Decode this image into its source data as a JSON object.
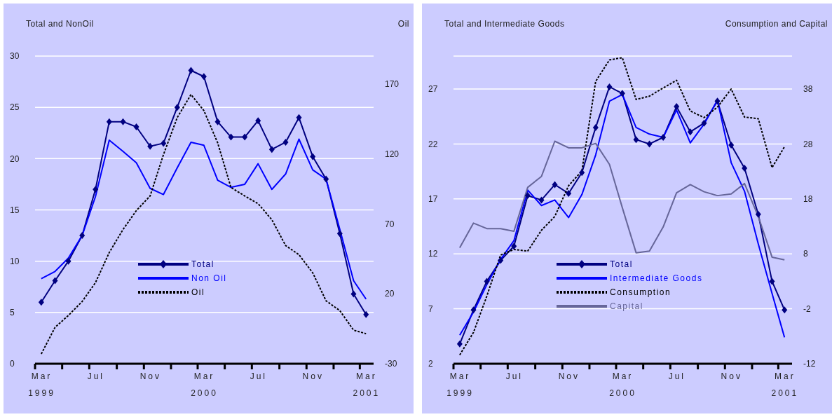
{
  "chart_data": [
    {
      "type": "line",
      "ylabel": "Total and NonOil",
      "y2label": "Oil",
      "x": [
        "1999-03-15",
        "1999-04-15",
        "1999-05-15",
        "1999-06-15",
        "1999-07-15",
        "1999-08-15",
        "1999-09-15",
        "1999-10-15",
        "1999-11-15",
        "1999-12-15",
        "2000-01-15",
        "2000-02-15",
        "2000-03-15",
        "2000-04-15",
        "2000-05-15",
        "2000-06-15",
        "2000-07-15",
        "2000-08-15",
        "2000-09-15",
        "2000-10-15",
        "2000-11-15",
        "2000-12-15",
        "2001-01-15",
        "2001-02-15",
        "2001-03-15"
      ],
      "series": [
        {
          "name": "Total",
          "color": "#000080",
          "marker": "diamond",
          "line_style": "solid",
          "values": [
            6.0,
            8.1,
            10.0,
            12.5,
            17.0,
            23.6,
            23.6,
            23.1,
            21.2,
            21.5,
            25.0,
            28.6,
            28.0,
            23.6,
            22.1,
            22.1,
            23.7,
            20.9,
            21.6,
            24.0,
            20.2,
            18.0,
            12.7,
            6.8,
            4.8
          ]
        },
        {
          "name": "Non Oil",
          "color": "#0000ff",
          "marker": "none",
          "line_style": "solid",
          "values": [
            8.3,
            9.0,
            10.3,
            12.5,
            16.3,
            21.8,
            20.7,
            19.6,
            17.1,
            16.5,
            19.1,
            21.6,
            21.3,
            17.9,
            17.2,
            17.5,
            19.5,
            17.0,
            18.5,
            21.9,
            18.9,
            18.0,
            13.1,
            8.1,
            6.3
          ]
        },
        {
          "name": "Oil",
          "color": "#000000",
          "marker": "none",
          "line_style": "dashed",
          "axis": "y2",
          "values": [
            -23,
            -4,
            4.5,
            14.5,
            28,
            49.5,
            66,
            79.5,
            90,
            119.5,
            146,
            162.5,
            151,
            128,
            96,
            90,
            84.5,
            73,
            54.5,
            48,
            35,
            15,
            8,
            -6,
            -8.5
          ]
        }
      ],
      "xlim": [
        "1999-03-01",
        "2001-04-01"
      ],
      "xticks": [
        {
          "value": "1999-03-01",
          "label": null
        },
        {
          "value": "1999-03-16",
          "label": "Mar\n1999"
        },
        {
          "value": "1999-05-01",
          "label": null
        },
        {
          "value": "1999-07-01",
          "label": null
        },
        {
          "value": "1999-07-16",
          "label": "Jul"
        },
        {
          "value": "1999-09-01",
          "label": null
        },
        {
          "value": "1999-11-01",
          "label": null
        },
        {
          "value": "1999-11-16",
          "label": "Nov"
        },
        {
          "value": "2000-01-01",
          "label": null
        },
        {
          "value": "2000-03-01",
          "label": null
        },
        {
          "value": "2000-03-16",
          "label": "Mar\n2000"
        },
        {
          "value": "2000-05-01",
          "label": null
        },
        {
          "value": "2000-07-01",
          "label": null
        },
        {
          "value": "2000-07-16",
          "label": "Jul"
        },
        {
          "value": "2000-09-01",
          "label": null
        },
        {
          "value": "2000-11-01",
          "label": null
        },
        {
          "value": "2000-11-16",
          "label": "Nov"
        },
        {
          "value": "2001-01-01",
          "label": null
        },
        {
          "value": "2001-03-01",
          "label": null
        },
        {
          "value": "2001-03-16",
          "label": "Mar\n2001"
        }
      ],
      "ylim": [
        0,
        30
      ],
      "yticks": [
        0,
        5,
        10,
        15,
        20,
        25,
        30
      ],
      "y2lim": [
        -30,
        190
      ],
      "y2ticks": [
        -30,
        20,
        70,
        120,
        170
      ],
      "grid": "y",
      "legend": "bottom"
    },
    {
      "type": "line",
      "ylabel": "Total and Intermediate Goods",
      "y2label": "Consumption and Capital",
      "x": [
        "1999-03-15",
        "1999-04-15",
        "1999-05-15",
        "1999-06-15",
        "1999-07-15",
        "1999-08-15",
        "1999-09-15",
        "1999-10-15",
        "1999-11-15",
        "1999-12-15",
        "2000-01-15",
        "2000-02-15",
        "2000-03-15",
        "2000-04-15",
        "2000-05-15",
        "2000-06-15",
        "2000-07-15",
        "2000-08-15",
        "2000-09-15",
        "2000-10-15",
        "2000-11-15",
        "2000-12-15",
        "2001-01-15",
        "2001-02-15",
        "2001-03-15"
      ],
      "series": [
        {
          "name": "Total",
          "color": "#000080",
          "marker": "diamond",
          "line_style": "solid",
          "values": [
            3.8,
            6.9,
            9.5,
            11.4,
            12.7,
            17.3,
            16.9,
            18.3,
            17.5,
            19.4,
            23.5,
            27.2,
            26.6,
            22.4,
            22.0,
            22.6,
            25.4,
            23.1,
            23.9,
            25.9,
            21.9,
            19.8,
            15.6,
            9.5,
            6.9
          ]
        },
        {
          "name": "Intermediate Goods",
          "color": "#0000ff",
          "marker": "none",
          "line_style": "solid",
          "values": [
            4.6,
            6.7,
            9.2,
            11.5,
            13.2,
            17.8,
            16.4,
            16.9,
            15.3,
            17.4,
            21.0,
            25.9,
            26.5,
            23.5,
            22.9,
            22.6,
            25.1,
            22.1,
            23.8,
            26.0,
            20.3,
            17.7,
            12.9,
            8.4,
            4.4
          ]
        },
        {
          "name": "Consumption",
          "color": "#000000",
          "marker": "none",
          "line_style": "dashed",
          "axis": "y2",
          "values": [
            -10.4,
            -6.3,
            0.3,
            7.8,
            8.8,
            8.5,
            12.3,
            14.8,
            20.4,
            23.1,
            39.4,
            43.3,
            43.7,
            36.1,
            36.7,
            38.2,
            39.6,
            34.0,
            32.8,
            34.7,
            38.0,
            32.9,
            32.6,
            23.7,
            27.5
          ]
        },
        {
          "name": "Capital",
          "color": "#666699",
          "marker": "none",
          "line_style": "solid",
          "axis": "y2",
          "values": [
            9.1,
            13.6,
            12.6,
            12.6,
            12.1,
            20.1,
            22.1,
            28.5,
            27.3,
            27.3,
            28.1,
            24.3,
            16.4,
            8.2,
            8.5,
            12.9,
            19.1,
            20.6,
            19.3,
            18.6,
            18.9,
            20.8,
            14.8,
            7.4,
            6.9
          ]
        }
      ],
      "xlim": [
        "1999-03-01",
        "2001-04-01"
      ],
      "xticks": [
        {
          "value": "1999-03-01",
          "label": null
        },
        {
          "value": "1999-03-16",
          "label": "Mar\n1999"
        },
        {
          "value": "1999-05-01",
          "label": null
        },
        {
          "value": "1999-07-01",
          "label": null
        },
        {
          "value": "1999-07-16",
          "label": "Jul"
        },
        {
          "value": "1999-09-01",
          "label": null
        },
        {
          "value": "1999-11-01",
          "label": null
        },
        {
          "value": "1999-11-16",
          "label": "Nov"
        },
        {
          "value": "2000-01-01",
          "label": null
        },
        {
          "value": "2000-03-01",
          "label": null
        },
        {
          "value": "2000-03-16",
          "label": "Mar\n2000"
        },
        {
          "value": "2000-05-01",
          "label": null
        },
        {
          "value": "2000-07-01",
          "label": null
        },
        {
          "value": "2000-07-16",
          "label": "Jul"
        },
        {
          "value": "2000-09-01",
          "label": null
        },
        {
          "value": "2000-11-01",
          "label": null
        },
        {
          "value": "2000-11-16",
          "label": "Nov"
        },
        {
          "value": "2001-01-01",
          "label": null
        },
        {
          "value": "2001-03-01",
          "label": null
        },
        {
          "value": "2001-03-16",
          "label": "Mar\n2001"
        }
      ],
      "ylim": [
        2,
        30
      ],
      "yticks": [
        2,
        7,
        12,
        17,
        22,
        27
      ],
      "y2lim": [
        -12,
        44
      ],
      "y2ticks": [
        -12,
        -2,
        8,
        18,
        28,
        38
      ],
      "grid": "y",
      "legend": "bottom"
    }
  ]
}
